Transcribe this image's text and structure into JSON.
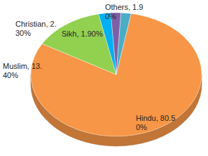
{
  "chart_data": {
    "type": "pie",
    "categories": [
      "Hindu",
      "Muslim",
      "Christian",
      "Sikh",
      "Others"
    ],
    "values": [
      80.5,
      13.4,
      2.3,
      1.9,
      1.9
    ],
    "value_labels": [
      "Hindu, 80.50%",
      "Muslim, 13.40%",
      "Christian, 2.30%",
      "Sikh, 1.90%",
      "Others, 1.90%"
    ],
    "colors": [
      "#f79646",
      "#92d050",
      "#00b0f0",
      "#7e5fa6",
      "#4bacc6"
    ],
    "data_labels": true
  }
}
